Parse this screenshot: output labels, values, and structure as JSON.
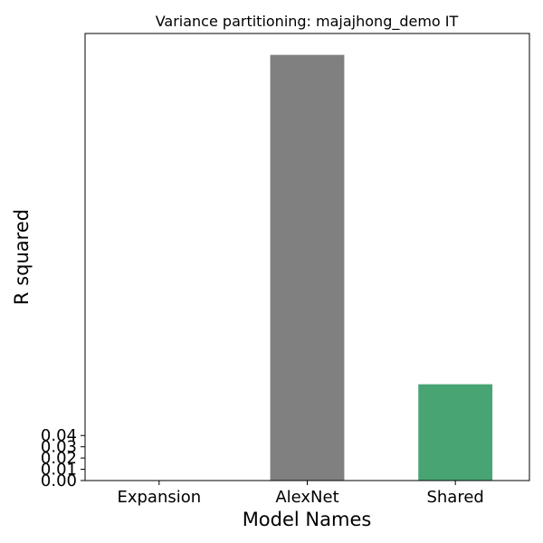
{
  "chart_data": {
    "type": "bar",
    "title": "Variance partitioning: majajhong_demo IT",
    "xlabel": "Model Names",
    "ylabel": "R squared",
    "categories": [
      "Expansion",
      "AlexNet",
      "Shared"
    ],
    "values": [
      0.0,
      0.378,
      0.0855
    ],
    "colors": [
      "#1f77b4",
      "#808080",
      "#48a473"
    ],
    "yticks": [
      "0.00",
      "0.01",
      "0.02",
      "0.03",
      "0.04"
    ],
    "ytick_values": [
      0.0,
      0.01,
      0.02,
      0.03,
      0.04
    ],
    "ylim": [
      0.0,
      0.397
    ],
    "grid": false,
    "legend": false
  }
}
